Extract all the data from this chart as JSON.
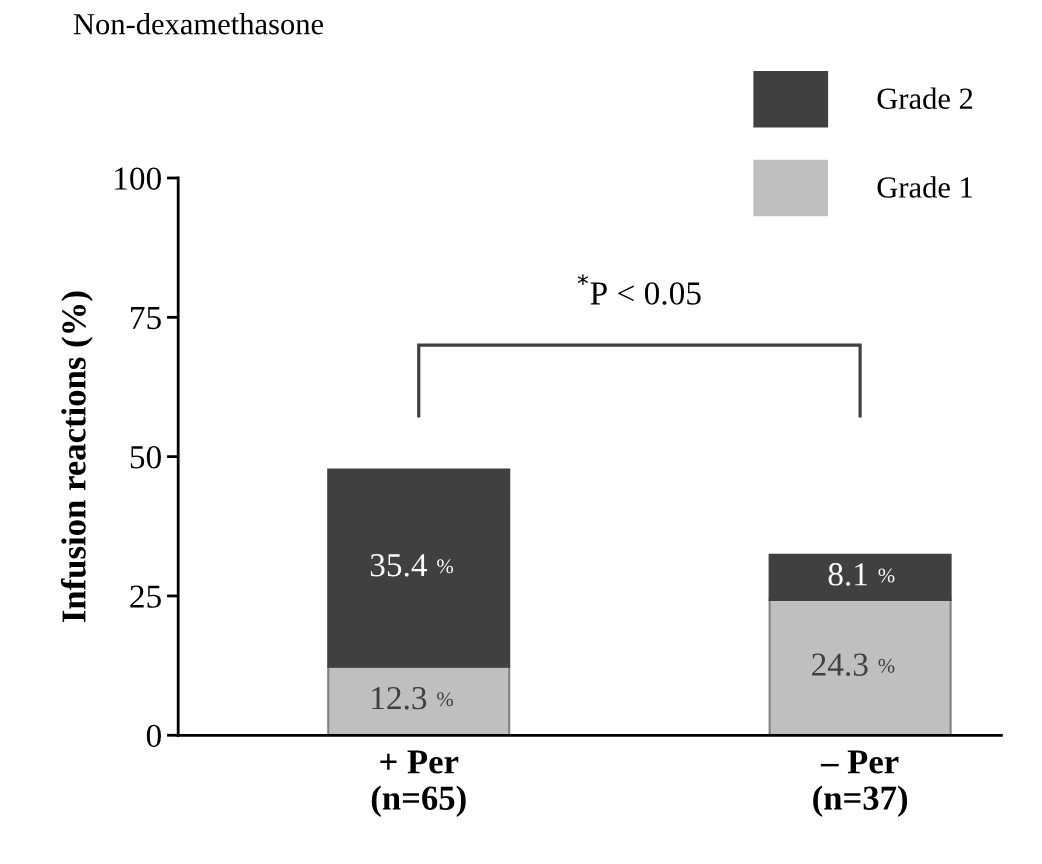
{
  "chart_data": {
    "type": "bar",
    "title": "Non-dexamethasone",
    "ylabel": "Infusion reactions (%)",
    "categories": [
      "+ Per\n(n=65)",
      "– Per\n(n=37)"
    ],
    "stacked": true,
    "series": [
      {
        "name": "Grade 1",
        "color": "#bfbfbf",
        "values": [
          12.3,
          24.3
        ],
        "value_labels": [
          "12.3 %",
          "24.3 %"
        ]
      },
      {
        "name": "Grade 2",
        "color": "#404040",
        "values": [
          35.4,
          8.1
        ],
        "value_labels": [
          "35.4 %",
          "8.1 %"
        ]
      }
    ],
    "ylim": [
      0,
      100
    ],
    "yticks": [
      0,
      25,
      50,
      75,
      100
    ],
    "grid": false,
    "legend": "top right",
    "annotations": [
      "$^{*}$P < 0.05"
    ]
  }
}
